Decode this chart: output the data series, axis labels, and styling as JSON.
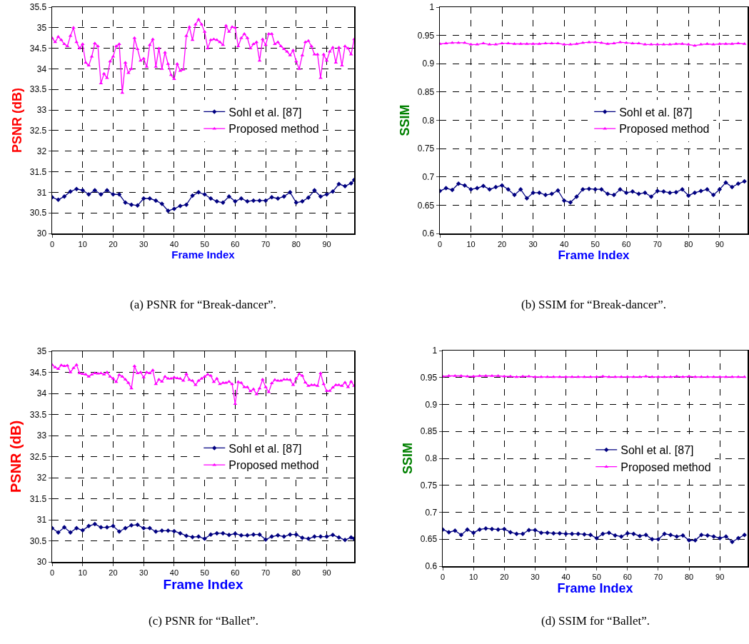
{
  "chart_data": [
    {
      "type": "line",
      "xlabel": "Frame Index",
      "ylabel": "PSNR (dB)",
      "xlim": [
        0,
        99
      ],
      "xticks": [
        0,
        10,
        20,
        30,
        40,
        50,
        60,
        70,
        80,
        90
      ],
      "ylim": [
        30,
        35.5
      ],
      "yticks": [
        30,
        30.5,
        31,
        31.5,
        32,
        32.5,
        33,
        33.5,
        34,
        34.5,
        35,
        35.5
      ],
      "grid": true,
      "legend": "right",
      "annotations": [
        "(a) PSNR for “Break-dancer”."
      ],
      "series": [
        {
          "name": "Sohl et al. [87]",
          "color": "#000080",
          "marker": "diamond",
          "x": [
            0,
            2,
            4,
            6,
            8,
            10,
            12,
            14,
            16,
            18,
            20,
            22,
            24,
            26,
            28,
            30,
            32,
            34,
            36,
            38,
            40,
            42,
            44,
            46,
            48,
            50,
            52,
            54,
            56,
            58,
            60,
            62,
            64,
            66,
            68,
            70,
            72,
            74,
            76,
            78,
            80,
            82,
            84,
            86,
            88,
            90,
            92,
            94,
            96,
            98,
            99
          ],
          "values": [
            30.88,
            30.82,
            30.9,
            31.02,
            31.08,
            31.05,
            30.95,
            31.05,
            30.95,
            31.05,
            30.95,
            30.95,
            30.75,
            30.7,
            30.68,
            30.85,
            30.85,
            30.8,
            30.72,
            30.55,
            30.6,
            30.67,
            30.7,
            30.92,
            31.0,
            30.95,
            30.85,
            30.78,
            30.75,
            30.9,
            30.78,
            30.85,
            30.78,
            30.8,
            30.8,
            30.8,
            30.88,
            30.85,
            30.9,
            31.0,
            30.75,
            30.78,
            30.87,
            31.05,
            30.9,
            30.95,
            31.02,
            31.2,
            31.15,
            31.22,
            31.3
          ]
        },
        {
          "name": "Proposed method",
          "color": "#ff00ff",
          "marker": "triangle",
          "x": [
            0,
            1,
            2,
            3,
            4,
            5,
            6,
            7,
            8,
            9,
            10,
            11,
            12,
            13,
            14,
            15,
            16,
            17,
            18,
            19,
            20,
            21,
            22,
            23,
            24,
            25,
            26,
            27,
            28,
            29,
            30,
            31,
            32,
            33,
            34,
            35,
            36,
            37,
            38,
            39,
            40,
            41,
            42,
            43,
            44,
            45,
            46,
            47,
            48,
            49,
            50,
            51,
            52,
            53,
            54,
            55,
            56,
            57,
            58,
            59,
            60,
            61,
            62,
            63,
            64,
            65,
            66,
            67,
            68,
            69,
            70,
            71,
            72,
            73,
            74,
            75,
            76,
            77,
            78,
            79,
            80,
            81,
            82,
            83,
            84,
            85,
            86,
            87,
            88,
            89,
            90,
            91,
            92,
            93,
            94,
            95,
            96,
            97,
            98,
            99
          ],
          "values": [
            34.75,
            34.65,
            34.78,
            34.7,
            34.6,
            34.55,
            34.8,
            35.0,
            34.65,
            34.5,
            34.6,
            34.15,
            34.08,
            34.3,
            34.62,
            34.55,
            33.65,
            33.88,
            33.78,
            34.18,
            34.3,
            34.55,
            34.6,
            33.42,
            34.15,
            33.9,
            34.0,
            34.75,
            34.48,
            34.2,
            34.25,
            34.05,
            34.58,
            34.72,
            34.05,
            34.5,
            34.0,
            34.4,
            34.12,
            33.85,
            33.75,
            34.12,
            33.95,
            33.98,
            34.8,
            35.02,
            34.7,
            35.08,
            35.2,
            35.08,
            34.9,
            34.5,
            34.7,
            34.72,
            34.7,
            34.65,
            34.58,
            35.05,
            34.9,
            35.02,
            35.0,
            34.55,
            34.75,
            34.85,
            34.75,
            34.5,
            34.6,
            34.65,
            34.2,
            34.72,
            34.58,
            34.85,
            34.85,
            34.6,
            34.65,
            34.55,
            34.48,
            34.42,
            34.33,
            34.45,
            34.18,
            34.0,
            34.33,
            34.65,
            34.68,
            34.55,
            34.35,
            34.35,
            33.78,
            34.35,
            34.2,
            34.42,
            34.52,
            34.15,
            34.52,
            34.08,
            34.55,
            34.5,
            34.35,
            34.72
          ]
        }
      ]
    },
    {
      "type": "line",
      "xlabel": "Frame Index",
      "ylabel": "SSIM",
      "xlim": [
        0,
        99
      ],
      "xticks": [
        0,
        10,
        20,
        30,
        40,
        50,
        60,
        70,
        80,
        90
      ],
      "ylim": [
        0.6,
        1
      ],
      "yticks": [
        0.6,
        0.65,
        0.7,
        0.75,
        0.8,
        0.85,
        0.9,
        0.95,
        1
      ],
      "grid": true,
      "legend": "right",
      "annotations": [
        "(b) SSIM for “Break-dancer”."
      ],
      "series": [
        {
          "name": "Sohl et al. [87]",
          "color": "#000080",
          "marker": "diamond",
          "x": [
            0,
            2,
            4,
            6,
            8,
            10,
            12,
            14,
            16,
            18,
            20,
            22,
            24,
            26,
            28,
            30,
            32,
            34,
            36,
            38,
            40,
            42,
            44,
            46,
            48,
            50,
            52,
            54,
            56,
            58,
            60,
            62,
            64,
            66,
            68,
            70,
            72,
            74,
            76,
            78,
            80,
            82,
            84,
            86,
            88,
            90,
            92,
            94,
            96,
            98
          ],
          "values": [
            0.675,
            0.68,
            0.677,
            0.688,
            0.685,
            0.678,
            0.68,
            0.684,
            0.678,
            0.682,
            0.685,
            0.678,
            0.668,
            0.678,
            0.662,
            0.672,
            0.672,
            0.668,
            0.67,
            0.676,
            0.658,
            0.655,
            0.665,
            0.678,
            0.679,
            0.678,
            0.678,
            0.67,
            0.668,
            0.678,
            0.672,
            0.674,
            0.67,
            0.672,
            0.665,
            0.675,
            0.674,
            0.672,
            0.673,
            0.678,
            0.667,
            0.672,
            0.675,
            0.678,
            0.668,
            0.678,
            0.69,
            0.682,
            0.688,
            0.692
          ]
        },
        {
          "name": "Proposed method",
          "color": "#ff00ff",
          "marker": "triangle",
          "x": [
            0,
            2,
            4,
            6,
            8,
            10,
            12,
            14,
            16,
            18,
            20,
            22,
            24,
            26,
            28,
            30,
            32,
            34,
            36,
            38,
            40,
            42,
            44,
            46,
            48,
            50,
            52,
            54,
            56,
            58,
            60,
            62,
            64,
            66,
            68,
            70,
            72,
            74,
            76,
            78,
            80,
            82,
            84,
            86,
            88,
            90,
            92,
            94,
            96,
            98
          ],
          "values": [
            0.935,
            0.936,
            0.937,
            0.937,
            0.937,
            0.934,
            0.934,
            0.936,
            0.934,
            0.934,
            0.936,
            0.936,
            0.935,
            0.935,
            0.935,
            0.935,
            0.935,
            0.936,
            0.936,
            0.936,
            0.934,
            0.934,
            0.935,
            0.937,
            0.938,
            0.938,
            0.937,
            0.935,
            0.936,
            0.938,
            0.937,
            0.936,
            0.936,
            0.934,
            0.934,
            0.934,
            0.934,
            0.934,
            0.935,
            0.935,
            0.934,
            0.932,
            0.934,
            0.935,
            0.934,
            0.935,
            0.935,
            0.935,
            0.936,
            0.935
          ]
        }
      ]
    },
    {
      "type": "line",
      "xlabel": "Frame Index",
      "ylabel": "PSNR (dB)",
      "xlim": [
        0,
        99
      ],
      "xticks": [
        0,
        10,
        20,
        30,
        40,
        50,
        60,
        70,
        80,
        90
      ],
      "ylim": [
        30,
        35
      ],
      "yticks": [
        30,
        30.5,
        31,
        31.5,
        32,
        32.5,
        33,
        33.5,
        34,
        34.5,
        35
      ],
      "grid": true,
      "legend": "right",
      "annotations": [
        "(c) PSNR for “Ballet”."
      ],
      "series": [
        {
          "name": "Sohl et al. [87]",
          "color": "#000080",
          "marker": "diamond",
          "x": [
            0,
            2,
            4,
            6,
            8,
            10,
            12,
            14,
            16,
            18,
            20,
            22,
            24,
            26,
            28,
            30,
            32,
            34,
            36,
            38,
            40,
            42,
            44,
            46,
            48,
            50,
            52,
            54,
            56,
            58,
            60,
            62,
            64,
            66,
            68,
            70,
            72,
            74,
            76,
            78,
            80,
            82,
            84,
            86,
            88,
            90,
            92,
            94,
            96,
            98,
            99
          ],
          "values": [
            30.8,
            30.7,
            30.82,
            30.7,
            30.8,
            30.75,
            30.85,
            30.9,
            30.82,
            30.82,
            30.85,
            30.72,
            30.8,
            30.87,
            30.88,
            30.8,
            30.8,
            30.72,
            30.74,
            30.74,
            30.73,
            30.68,
            30.62,
            30.59,
            30.6,
            30.55,
            30.65,
            30.68,
            30.68,
            30.64,
            30.67,
            30.63,
            30.63,
            30.65,
            30.65,
            30.53,
            30.6,
            30.63,
            30.6,
            30.65,
            30.65,
            30.57,
            30.55,
            30.6,
            30.6,
            30.6,
            30.64,
            30.58,
            30.52,
            30.58,
            30.55
          ]
        },
        {
          "name": "Proposed method",
          "color": "#ff00ff",
          "marker": "triangle",
          "x": [
            0,
            1,
            2,
            3,
            4,
            5,
            6,
            7,
            8,
            9,
            10,
            11,
            12,
            13,
            14,
            15,
            16,
            17,
            18,
            19,
            20,
            21,
            22,
            23,
            24,
            25,
            26,
            27,
            28,
            29,
            30,
            31,
            32,
            33,
            34,
            35,
            36,
            37,
            38,
            39,
            40,
            41,
            42,
            43,
            44,
            45,
            46,
            47,
            48,
            49,
            50,
            51,
            52,
            53,
            54,
            55,
            56,
            57,
            58,
            59,
            60,
            61,
            62,
            63,
            64,
            65,
            66,
            67,
            68,
            69,
            70,
            71,
            72,
            73,
            74,
            75,
            76,
            77,
            78,
            79,
            80,
            81,
            82,
            83,
            84,
            85,
            86,
            87,
            88,
            89,
            90,
            91,
            92,
            93,
            94,
            95,
            96,
            97,
            98,
            99
          ],
          "values": [
            34.68,
            34.62,
            34.58,
            34.67,
            34.65,
            34.66,
            34.5,
            34.6,
            34.68,
            34.48,
            34.46,
            34.45,
            34.4,
            34.45,
            34.48,
            34.47,
            34.48,
            34.45,
            34.5,
            34.4,
            34.35,
            34.27,
            34.44,
            34.4,
            34.33,
            34.25,
            34.12,
            34.65,
            34.48,
            34.5,
            34.38,
            34.5,
            34.48,
            34.55,
            34.22,
            34.33,
            34.28,
            34.4,
            34.35,
            34.35,
            34.38,
            34.36,
            34.35,
            34.3,
            34.46,
            34.32,
            34.3,
            34.2,
            34.3,
            34.35,
            34.4,
            34.45,
            34.42,
            34.27,
            34.35,
            34.22,
            34.25,
            34.25,
            34.28,
            34.22,
            33.75,
            34.27,
            34.25,
            34.15,
            34.15,
            34.05,
            34.1,
            33.98,
            34.12,
            34.33,
            34.15,
            34.03,
            34.24,
            34.32,
            34.3,
            34.3,
            34.33,
            34.33,
            34.32,
            34.2,
            34.35,
            34.46,
            34.42,
            34.26,
            34.18,
            34.2,
            34.2,
            34.18,
            34.48,
            34.22,
            34.06,
            34.06,
            34.14,
            34.2,
            34.2,
            34.18,
            34.26,
            34.15,
            34.28,
            34.18
          ]
        }
      ]
    },
    {
      "type": "line",
      "xlabel": "Frame Index",
      "ylabel": "SSIM",
      "xlim": [
        0,
        99
      ],
      "xticks": [
        0,
        10,
        20,
        30,
        40,
        50,
        60,
        70,
        80,
        90
      ],
      "ylim": [
        0.6,
        1
      ],
      "yticks": [
        0.6,
        0.65,
        0.7,
        0.75,
        0.8,
        0.85,
        0.9,
        0.95,
        1
      ],
      "grid": true,
      "legend": "right",
      "annotations": [
        "(d) SSIM for “Ballet”."
      ],
      "series": [
        {
          "name": "Sohl et al. [87]",
          "color": "#000080",
          "marker": "diamond",
          "x": [
            0,
            2,
            4,
            6,
            8,
            10,
            12,
            14,
            16,
            18,
            20,
            22,
            24,
            26,
            28,
            30,
            32,
            34,
            36,
            38,
            40,
            42,
            44,
            46,
            48,
            50,
            52,
            54,
            56,
            58,
            60,
            62,
            64,
            66,
            68,
            70,
            72,
            74,
            76,
            78,
            80,
            82,
            84,
            86,
            88,
            90,
            92,
            94,
            96,
            98
          ],
          "values": [
            0.668,
            0.663,
            0.666,
            0.658,
            0.668,
            0.662,
            0.668,
            0.67,
            0.669,
            0.668,
            0.669,
            0.663,
            0.66,
            0.66,
            0.667,
            0.667,
            0.662,
            0.662,
            0.661,
            0.661,
            0.66,
            0.66,
            0.66,
            0.659,
            0.658,
            0.652,
            0.66,
            0.662,
            0.657,
            0.655,
            0.661,
            0.66,
            0.656,
            0.658,
            0.65,
            0.65,
            0.66,
            0.658,
            0.655,
            0.657,
            0.648,
            0.648,
            0.658,
            0.657,
            0.655,
            0.652,
            0.655,
            0.645,
            0.652,
            0.658
          ]
        },
        {
          "name": "Proposed method",
          "color": "#ff00ff",
          "marker": "triangle",
          "x": [
            0,
            2,
            4,
            6,
            8,
            10,
            12,
            14,
            16,
            18,
            20,
            22,
            24,
            26,
            28,
            30,
            32,
            34,
            36,
            38,
            40,
            42,
            44,
            46,
            48,
            50,
            52,
            54,
            56,
            58,
            60,
            62,
            64,
            66,
            68,
            70,
            72,
            74,
            76,
            78,
            80,
            82,
            84,
            86,
            88,
            90,
            92,
            94,
            96,
            98
          ],
          "values": [
            0.952,
            0.953,
            0.953,
            0.953,
            0.952,
            0.952,
            0.953,
            0.953,
            0.953,
            0.953,
            0.952,
            0.952,
            0.951,
            0.952,
            0.952,
            0.951,
            0.951,
            0.951,
            0.951,
            0.951,
            0.951,
            0.951,
            0.951,
            0.951,
            0.951,
            0.951,
            0.952,
            0.951,
            0.951,
            0.951,
            0.951,
            0.951,
            0.951,
            0.952,
            0.951,
            0.951,
            0.951,
            0.951,
            0.952,
            0.951,
            0.952,
            0.951,
            0.951,
            0.951,
            0.951,
            0.951,
            0.951,
            0.951,
            0.951,
            0.951
          ]
        }
      ]
    }
  ]
}
